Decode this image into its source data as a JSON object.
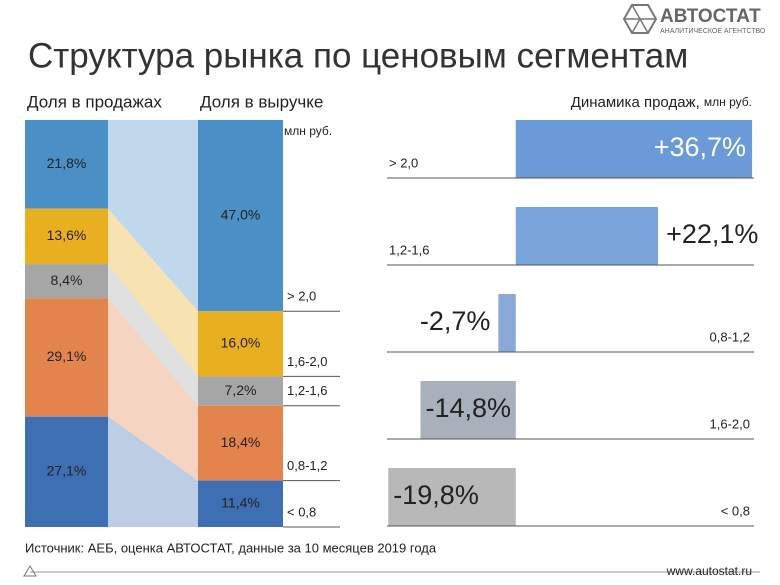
{
  "logo": {
    "name": "АВТОСТАТ",
    "tagline": "АНАЛИТИЧЕСКОЕ АГЕНТСТВО"
  },
  "title": "Структура рынка по ценовым сегментам",
  "chart_data": [
    {
      "type": "stacked100",
      "unit": "млн руб.",
      "categories": [
        "> 2,0",
        "1,6-2,0",
        "1,2-1,6",
        "0,8-1,2",
        "< 0,8"
      ],
      "colors": [
        "#4a8fc5",
        "#e8b020",
        "#a6a6a6",
        "#e3844c",
        "#3f6fb3"
      ],
      "ylim": [
        0,
        100
      ],
      "series": [
        {
          "name": "Доля в продажах",
          "values": [
            21.8,
            13.6,
            8.4,
            29.1,
            27.1
          ],
          "value_labels": [
            "21,8%",
            "13,6%",
            "8,4%",
            "29,1%",
            "27,1%"
          ]
        },
        {
          "name": "Доля в выручке",
          "values": [
            47.0,
            16.0,
            7.2,
            18.4,
            11.4
          ],
          "value_labels": [
            "47,0%",
            "16,0%",
            "7,2%",
            "18,4%",
            "11,4%"
          ]
        }
      ]
    },
    {
      "type": "hbar",
      "title": "Динамика продаж,",
      "unit": "млн руб.",
      "categories": [
        "> 2,0",
        "1,2-1,6",
        "0,8-1,2",
        "1,6-2,0",
        "< 0,8"
      ],
      "values": [
        36.7,
        22.1,
        -2.7,
        -14.8,
        -19.8
      ],
      "value_labels": [
        "+36,7%",
        "+22,1%",
        "-2,7%",
        "-14,8%",
        "-19,8%"
      ],
      "colors": [
        "#6a9bd8",
        "#7aa5dc",
        "#8aa8d8",
        "#a8b0bc",
        "#b8b8b8"
      ],
      "xlim": [
        -20,
        37
      ]
    }
  ],
  "source": "Источник: АЕБ, оценка АВТОСТАТ, данные за 10 месяцев 2019 года",
  "url": "www.autostat.ru"
}
